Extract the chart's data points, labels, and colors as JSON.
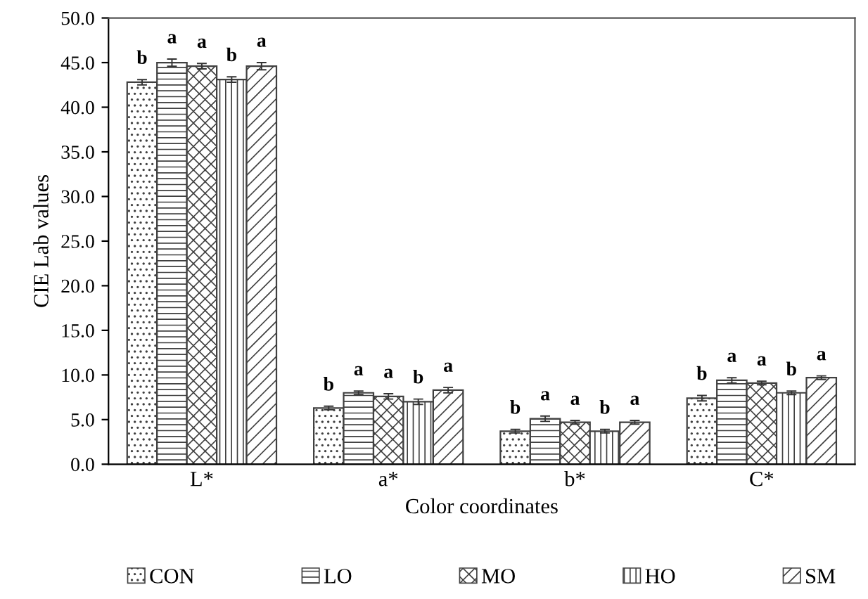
{
  "chart_data": {
    "type": "bar",
    "xlabel": "Color coordinates",
    "ylabel": "CIE Lab values",
    "categories": [
      "L*",
      "a*",
      "b*",
      "C*"
    ],
    "ylim": [
      0,
      50
    ],
    "yticks": [
      {
        "value": 0,
        "label": "0.0"
      },
      {
        "value": 5,
        "label": "5.0"
      },
      {
        "value": 10,
        "label": "10.0"
      },
      {
        "value": 15,
        "label": "15.0"
      },
      {
        "value": 20,
        "label": "20.0"
      },
      {
        "value": 25,
        "label": "25.0"
      },
      {
        "value": 30,
        "label": "30.0"
      },
      {
        "value": 35,
        "label": "35.0"
      },
      {
        "value": 40,
        "label": "40.0"
      },
      {
        "value": 45,
        "label": "45.0"
      },
      {
        "value": 50,
        "label": "50.0"
      }
    ],
    "grid": false,
    "legend": "bottom",
    "series": [
      {
        "name": "CON",
        "color": "#404040",
        "values": [
          42.8,
          6.3,
          3.7,
          7.4
        ],
        "errors": [
          0.3,
          0.2,
          0.2,
          0.3
        ],
        "value_labels": [
          "b",
          "b",
          "b",
          "b"
        ]
      },
      {
        "name": "LO",
        "color": "#404040",
        "values": [
          45.0,
          8.0,
          5.1,
          9.4
        ],
        "errors": [
          0.4,
          0.2,
          0.3,
          0.3
        ],
        "value_labels": [
          "a",
          "a",
          "a",
          "a"
        ]
      },
      {
        "name": "MO",
        "color": "#404040",
        "values": [
          44.6,
          7.6,
          4.7,
          9.1
        ],
        "errors": [
          0.3,
          0.3,
          0.2,
          0.2
        ],
        "value_labels": [
          "a",
          "a",
          "a",
          "a"
        ]
      },
      {
        "name": "HO",
        "color": "#404040",
        "values": [
          43.1,
          7.0,
          3.7,
          8.0
        ],
        "errors": [
          0.3,
          0.3,
          0.2,
          0.2
        ],
        "value_labels": [
          "b",
          "b",
          "b",
          "b"
        ]
      },
      {
        "name": "SM",
        "color": "#404040",
        "values": [
          44.6,
          8.3,
          4.7,
          9.7
        ],
        "errors": [
          0.4,
          0.3,
          0.2,
          0.2
        ],
        "value_labels": [
          "a",
          "a",
          "a",
          "a"
        ]
      }
    ]
  }
}
